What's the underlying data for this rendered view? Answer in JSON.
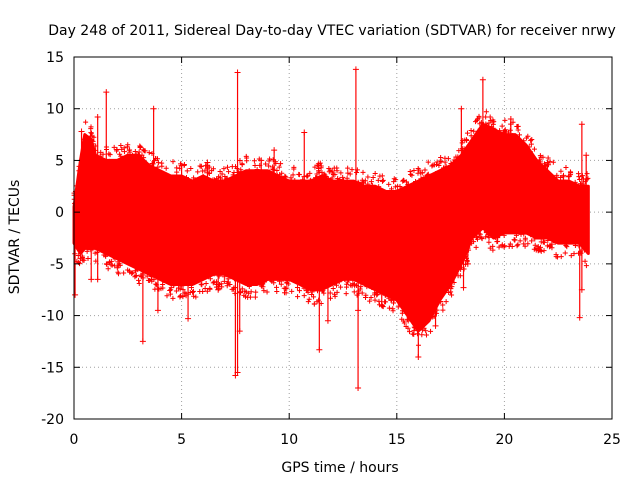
{
  "chart_data": {
    "type": "scatter",
    "title": "Day 248 of 2011, Sidereal Day-to-day VTEC variation (SDTVAR) for receiver nrwy",
    "xlabel": "GPS time / hours",
    "ylabel": "SDTVAR / TECUs",
    "xlim": [
      0,
      25
    ],
    "ylim": [
      -20,
      15
    ],
    "xticks": [
      0,
      5,
      10,
      15,
      20,
      25
    ],
    "yticks": [
      -20,
      -15,
      -10,
      -5,
      0,
      5,
      10,
      15
    ],
    "xtick_labels": [
      "0",
      "5",
      "10",
      "15",
      "20",
      "25"
    ],
    "ytick_labels": [
      "-20",
      "-15",
      "-10",
      "-5",
      "0",
      "5",
      "10",
      "15"
    ],
    "grid": true,
    "marker": "+",
    "series": [
      {
        "name": "SDTVAR",
        "color": "#ff0000",
        "envelope": {
          "x": [
            0.0,
            0.3,
            0.5,
            0.8,
            1.0,
            1.5,
            2.0,
            2.5,
            3.0,
            3.5,
            4.0,
            4.5,
            5.0,
            5.5,
            6.0,
            6.5,
            7.0,
            7.5,
            8.0,
            8.5,
            9.0,
            9.5,
            10.0,
            10.5,
            11.0,
            11.5,
            12.0,
            12.5,
            13.0,
            13.5,
            14.0,
            14.5,
            15.0,
            15.5,
            16.0,
            16.5,
            17.0,
            17.5,
            18.0,
            18.5,
            19.0,
            19.5,
            20.0,
            20.5,
            21.0,
            21.5,
            22.0,
            22.5,
            23.0,
            23.5,
            23.9
          ],
          "upper": [
            0.5,
            5.0,
            7.5,
            7.0,
            5.5,
            5.0,
            5.0,
            5.5,
            5.5,
            4.5,
            4.0,
            3.5,
            3.5,
            3.0,
            3.5,
            3.0,
            3.0,
            3.5,
            4.0,
            4.0,
            4.0,
            3.5,
            3.0,
            3.0,
            3.0,
            3.5,
            3.0,
            3.0,
            3.0,
            2.5,
            2.5,
            2.0,
            2.0,
            2.5,
            3.0,
            3.5,
            4.0,
            4.5,
            5.5,
            7.0,
            8.5,
            8.0,
            7.5,
            7.5,
            6.5,
            5.0,
            4.0,
            3.0,
            3.0,
            2.5,
            2.5
          ],
          "lower": [
            -3.0,
            -4.0,
            -3.5,
            -3.5,
            -3.5,
            -4.0,
            -4.5,
            -5.0,
            -5.5,
            -6.0,
            -6.5,
            -7.0,
            -7.0,
            -7.0,
            -6.5,
            -6.0,
            -6.0,
            -6.5,
            -7.0,
            -7.0,
            -6.5,
            -6.5,
            -6.5,
            -7.0,
            -7.5,
            -7.5,
            -7.0,
            -6.5,
            -6.5,
            -7.0,
            -7.5,
            -8.0,
            -8.5,
            -10.0,
            -11.5,
            -10.5,
            -8.5,
            -7.0,
            -5.0,
            -2.5,
            -1.5,
            -2.5,
            -2.0,
            -2.0,
            -2.0,
            -2.5,
            -2.5,
            -3.0,
            -3.0,
            -3.0,
            -4.0
          ]
        },
        "spikes": [
          {
            "x": 0.05,
            "y": -8.0
          },
          {
            "x": 0.3,
            "y": -4.5
          },
          {
            "x": 0.35,
            "y": 7.8
          },
          {
            "x": 0.8,
            "y": -6.5
          },
          {
            "x": 1.1,
            "y": 9.2
          },
          {
            "x": 1.1,
            "y": -6.5
          },
          {
            "x": 1.5,
            "y": 11.6
          },
          {
            "x": 3.2,
            "y": -12.5
          },
          {
            "x": 3.7,
            "y": 10.0
          },
          {
            "x": 3.9,
            "y": -9.5
          },
          {
            "x": 5.0,
            "y": 4.5
          },
          {
            "x": 5.3,
            "y": -10.3
          },
          {
            "x": 6.2,
            "y": 4.8
          },
          {
            "x": 6.7,
            "y": -7.5
          },
          {
            "x": 7.5,
            "y": -15.8
          },
          {
            "x": 7.6,
            "y": 13.5
          },
          {
            "x": 7.6,
            "y": -15.5
          },
          {
            "x": 7.7,
            "y": -11.5
          },
          {
            "x": 8.7,
            "y": 5.0
          },
          {
            "x": 9.3,
            "y": 6.0
          },
          {
            "x": 10.7,
            "y": 7.7
          },
          {
            "x": 11.4,
            "y": 2.0
          },
          {
            "x": 11.4,
            "y": -13.3
          },
          {
            "x": 11.8,
            "y": -10.5
          },
          {
            "x": 13.2,
            "y": -17.0
          },
          {
            "x": 13.1,
            "y": 13.8
          },
          {
            "x": 13.0,
            "y": 2.5
          },
          {
            "x": 13.2,
            "y": -9.5
          },
          {
            "x": 14.3,
            "y": -9.0
          },
          {
            "x": 15.2,
            "y": 2.0
          },
          {
            "x": 16.0,
            "y": -14.0
          },
          {
            "x": 16.8,
            "y": -11.0
          },
          {
            "x": 18.1,
            "y": -7.3
          },
          {
            "x": 18.0,
            "y": 10.0
          },
          {
            "x": 18.3,
            "y": -5.0
          },
          {
            "x": 19.0,
            "y": 12.8
          },
          {
            "x": 19.7,
            "y": 3.0
          },
          {
            "x": 20.3,
            "y": 9.0
          },
          {
            "x": 22.0,
            "y": 4.8
          },
          {
            "x": 23.0,
            "y": 3.5
          },
          {
            "x": 23.5,
            "y": -10.2
          },
          {
            "x": 23.6,
            "y": 8.5
          },
          {
            "x": 23.8,
            "y": 5.5
          },
          {
            "x": 23.6,
            "y": -7.5
          }
        ]
      }
    ]
  }
}
